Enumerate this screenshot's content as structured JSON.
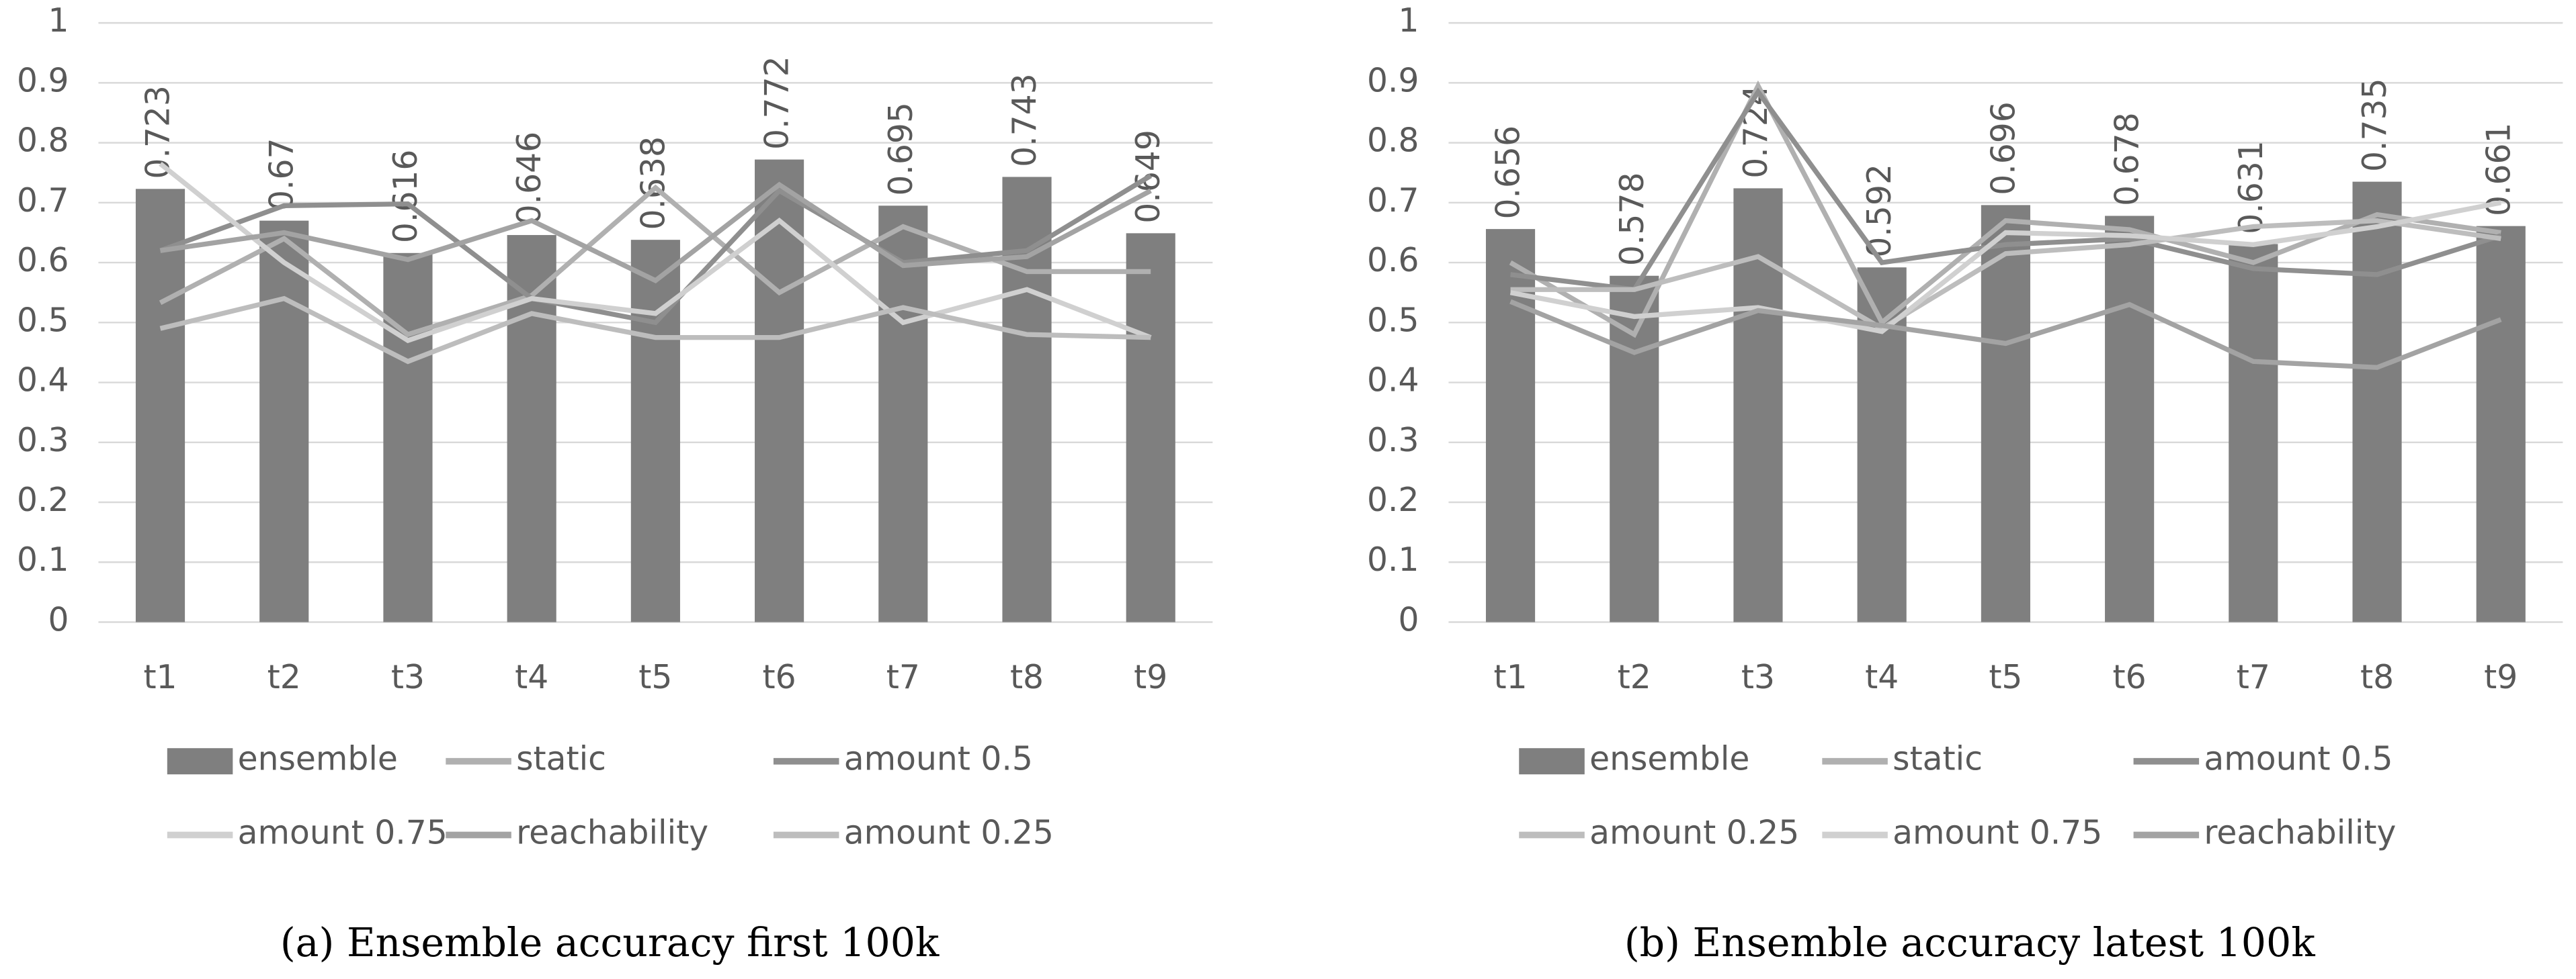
{
  "chart_data": [
    {
      "type": "bar",
      "title": "(a) Ensemble accuracy first 100k",
      "categories": [
        "t1",
        "t2",
        "t3",
        "t4",
        "t5",
        "t6",
        "t7",
        "t8",
        "t9"
      ],
      "ylim": [
        0,
        1
      ],
      "yticks": [
        0,
        0.1,
        0.2,
        0.3,
        0.4,
        0.5,
        0.6,
        0.7,
        0.8,
        0.9,
        1
      ],
      "grid": true,
      "series": [
        {
          "name": "ensemble",
          "type": "bar",
          "color": "#7f7f7f",
          "values": [
            0.723,
            0.67,
            0.616,
            0.646,
            0.638,
            0.772,
            0.695,
            0.743,
            0.649
          ]
        },
        {
          "name": "static",
          "type": "line",
          "color": "#b0b0b0",
          "values": [
            0.533,
            0.64,
            0.48,
            0.545,
            0.725,
            0.55,
            0.66,
            0.585,
            0.585
          ]
        },
        {
          "name": "amount 0.5",
          "type": "line",
          "color": "#8f8f8f",
          "values": [
            0.62,
            0.695,
            0.698,
            0.54,
            0.5,
            0.72,
            0.6,
            0.62,
            0.745
          ]
        },
        {
          "name": "amount 0.75",
          "type": "line",
          "color": "#d0d0d0",
          "values": [
            0.765,
            0.6,
            0.47,
            0.54,
            0.515,
            0.67,
            0.5,
            0.555,
            0.475
          ]
        },
        {
          "name": "reachability",
          "type": "line",
          "color": "#a3a3a3",
          "values": [
            0.62,
            0.65,
            0.605,
            0.67,
            0.57,
            0.73,
            0.595,
            0.61,
            0.72
          ]
        },
        {
          "name": "amount 0.25",
          "type": "line",
          "color": "#bdbdbd",
          "values": [
            0.49,
            0.54,
            0.435,
            0.515,
            0.475,
            0.475,
            0.525,
            0.48,
            0.475
          ]
        }
      ]
    },
    {
      "type": "bar",
      "title": "(b) Ensemble accuracy latest 100k",
      "categories": [
        "t1",
        "t2",
        "t3",
        "t4",
        "t5",
        "t6",
        "t7",
        "t8",
        "t9"
      ],
      "ylim": [
        0,
        1
      ],
      "yticks": [
        0,
        0.1,
        0.2,
        0.3,
        0.4,
        0.5,
        0.6,
        0.7,
        0.8,
        0.9,
        1
      ],
      "grid": true,
      "series": [
        {
          "name": "ensemble",
          "type": "bar",
          "color": "#7f7f7f",
          "values": [
            0.656,
            0.578,
            0.724,
            0.592,
            0.696,
            0.678,
            0.631,
            0.735,
            0.661
          ]
        },
        {
          "name": "static",
          "type": "line",
          "color": "#b0b0b0",
          "values": [
            0.6,
            0.48,
            0.895,
            0.5,
            0.67,
            0.655,
            0.6,
            0.68,
            0.65
          ]
        },
        {
          "name": "amount 0.5",
          "type": "line",
          "color": "#8f8f8f",
          "values": [
            0.58,
            0.555,
            0.885,
            0.6,
            0.63,
            0.64,
            0.59,
            0.58,
            0.645
          ]
        },
        {
          "name": "amount 0.25",
          "type": "line",
          "color": "#bdbdbd",
          "values": [
            0.555,
            0.555,
            0.61,
            0.49,
            0.615,
            0.63,
            0.66,
            0.67,
            0.64
          ]
        },
        {
          "name": "amount 0.75",
          "type": "line",
          "color": "#d0d0d0",
          "values": [
            0.55,
            0.51,
            0.525,
            0.485,
            0.65,
            0.645,
            0.63,
            0.66,
            0.7
          ]
        },
        {
          "name": "reachability",
          "type": "line",
          "color": "#a3a3a3",
          "values": [
            0.535,
            0.45,
            0.52,
            0.495,
            0.465,
            0.53,
            0.435,
            0.425,
            0.505
          ]
        }
      ]
    }
  ]
}
